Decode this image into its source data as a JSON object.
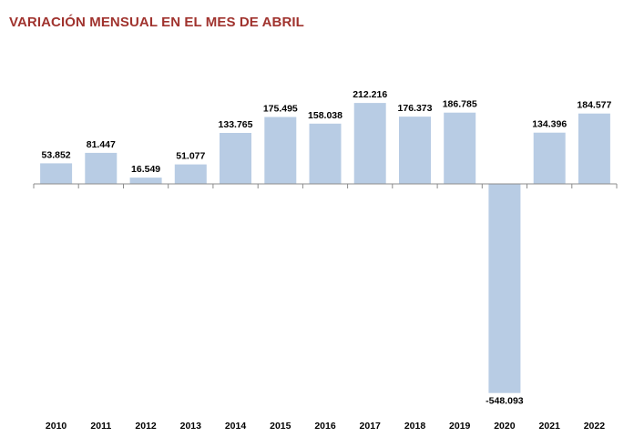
{
  "chart_data": {
    "type": "bar",
    "title": "VARIACIÓN MENSUAL EN EL MES DE ABRIL",
    "xlabel": "",
    "ylabel": "",
    "categories": [
      "2010",
      "2011",
      "2012",
      "2013",
      "2014",
      "2015",
      "2016",
      "2017",
      "2018",
      "2019",
      "2020",
      "2021",
      "2022"
    ],
    "values": [
      53852,
      81447,
      16549,
      51077,
      133765,
      175495,
      158038,
      212216,
      176373,
      186785,
      -548093,
      134396,
      184577
    ],
    "data_labels": [
      "53.852",
      "81.447",
      "16.549",
      "51.077",
      "133.765",
      "175.495",
      "158.038",
      "212.216",
      "176.373",
      "186.785",
      "-548.093",
      "134.396",
      "184.577"
    ],
    "bar_color": "#B8CCE4",
    "title_color": "#A0332E",
    "grid": false,
    "legend": "none"
  }
}
